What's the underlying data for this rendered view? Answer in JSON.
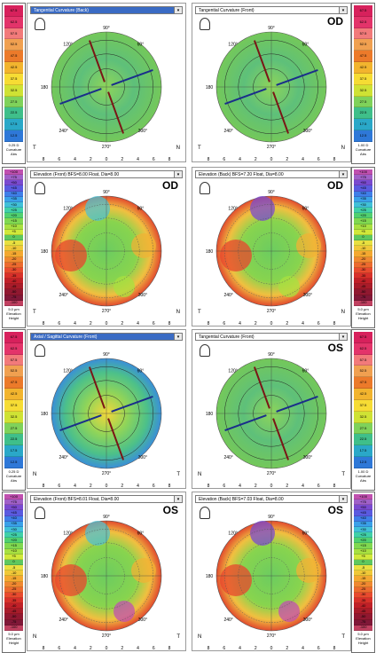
{
  "rows": [
    {
      "type": "curvature",
      "scale": {
        "values": [
          "67.5",
          "62.5",
          "57.5",
          "52.5",
          "47.5",
          "42.5",
          "37.5",
          "32.5",
          "27.5",
          "22.5",
          "17.5",
          "12.5"
        ],
        "colors": [
          "#d7215c",
          "#e3346a",
          "#f27a7a",
          "#f0a050",
          "#ec7a2a",
          "#f2b42e",
          "#f6dc34",
          "#cfe234",
          "#7fd25a",
          "#3fbf8a",
          "#2aa8c8",
          "#2e78d8"
        ],
        "foot_left": [
          "0.25 D",
          "Curvature",
          "Abs"
        ],
        "foot_right": [
          "1.00 D",
          "Curvature",
          "Abs"
        ]
      },
      "panels": [
        {
          "title": "Tangential Curvature (Back)",
          "selected": true,
          "eye": "",
          "left": "T",
          "right": "N"
        },
        {
          "title": "Tangential Curvature (Front)",
          "selected": false,
          "eye": "OD",
          "left": "T",
          "right": "N"
        }
      ]
    },
    {
      "type": "elevation",
      "scale": {
        "values": [
          "+100",
          "+75",
          "+50",
          "+45",
          "+40",
          "+35",
          "+30",
          "+25",
          "+20",
          "+15",
          "+10",
          "+5",
          "0",
          "-5",
          "-10",
          "-15",
          "-20",
          "-25",
          "-30",
          "-35",
          "-40",
          "-45",
          "-50",
          "-75",
          "-100"
        ],
        "foot_left": [
          "5.0 µm",
          "Elevation",
          "Height"
        ],
        "foot_right": [
          "5.0 µm",
          "Elevation",
          "Height"
        ]
      },
      "panels": [
        {
          "title": "Elevation (Front) BFS=8.00 Float, Dia=8.00",
          "selected": false,
          "eye": "OD",
          "left": "T",
          "right": "N"
        },
        {
          "title": "Elevation (Back) BFS=7.20 Float, Dia=8.00",
          "selected": false,
          "eye": "OD",
          "left": "T",
          "right": "N"
        }
      ]
    },
    {
      "type": "curvature",
      "scale": {
        "values": [
          "67.5",
          "62.5",
          "57.5",
          "52.5",
          "47.5",
          "42.5",
          "37.5",
          "32.5",
          "27.5",
          "22.5",
          "17.5",
          "12.5"
        ],
        "foot_left": [
          "0.25 D",
          "Curvature",
          "Abs"
        ],
        "foot_right": [
          "1.00 D",
          "Curvature",
          "Abs"
        ]
      },
      "panels": [
        {
          "title": "Axial / Sagittal Curvature (Front)",
          "selected": true,
          "eye": "",
          "left": "N",
          "right": "T"
        },
        {
          "title": "Tangential Curvature (Front)",
          "selected": false,
          "eye": "OS",
          "left": "N",
          "right": "T"
        }
      ]
    },
    {
      "type": "elevation",
      "scale": {
        "values": [
          "+100",
          "+75",
          "+50",
          "+45",
          "+40",
          "+35",
          "+30",
          "+25",
          "+20",
          "+15",
          "+10",
          "+5",
          "0",
          "-5",
          "-10",
          "-15",
          "-20",
          "-25",
          "-30",
          "-35",
          "-40",
          "-45",
          "-50",
          "-75",
          "-100"
        ],
        "foot_left": [
          "5.0 µm",
          "Elevation",
          "Height"
        ],
        "foot_right": [
          "5.0 µm",
          "Elevation",
          "Height"
        ]
      },
      "panels": [
        {
          "title": "Elevation (Front) BFS=8.01 Float, Dia=8.00",
          "selected": false,
          "eye": "OS",
          "left": "N",
          "right": "T"
        },
        {
          "title": "Elevation (Back) BFS=7.03 Float, Dia=8.00",
          "selected": false,
          "eye": "OS",
          "left": "N",
          "right": "T"
        }
      ]
    }
  ],
  "degrees": {
    "top": "90°",
    "bottom": "270°",
    "left": "180",
    "ul": "120°",
    "ur": "60°",
    "ll": "240°",
    "lr": "300°"
  },
  "axis_ticks": [
    "8",
    "6",
    "4",
    "2",
    "0",
    "2",
    "4",
    "6",
    "8"
  ]
}
